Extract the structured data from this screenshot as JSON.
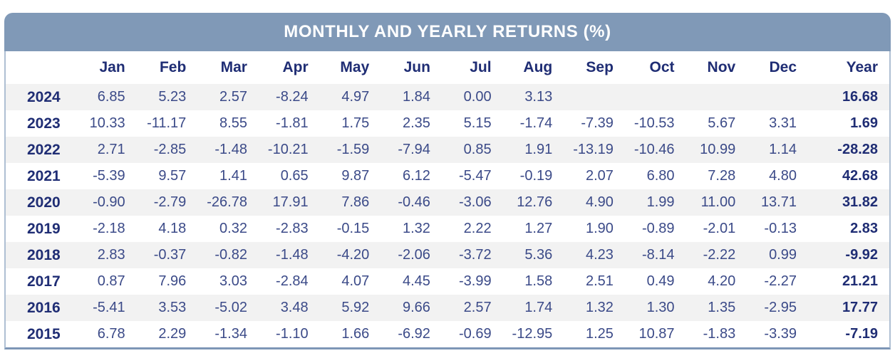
{
  "header": {
    "title": "MONTHLY AND YEARLY RETURNS (%)"
  },
  "colors": {
    "banner_bg": "#8099b7",
    "border_light": "#aebfd3",
    "border_bottom": "#7d96b6",
    "stripe_bg": "#f2f2f2",
    "head_text": "#1f2d74",
    "value_text": "#3b4a88"
  },
  "chart_data": {
    "type": "table",
    "title": "MONTHLY AND YEARLY RETURNS (%)",
    "columns": [
      "",
      "Jan",
      "Feb",
      "Mar",
      "Apr",
      "May",
      "Jun",
      "Jul",
      "Aug",
      "Sep",
      "Oct",
      "Nov",
      "Dec",
      "Year"
    ],
    "rows": [
      {
        "year": "2024",
        "values": [
          "6.85",
          "5.23",
          "2.57",
          "-8.24",
          "4.97",
          "1.84",
          "0.00",
          "3.13",
          "",
          "",
          "",
          ""
        ],
        "year_total": "16.68"
      },
      {
        "year": "2023",
        "values": [
          "10.33",
          "-11.17",
          "8.55",
          "-1.81",
          "1.75",
          "2.35",
          "5.15",
          "-1.74",
          "-7.39",
          "-10.53",
          "5.67",
          "3.31"
        ],
        "year_total": "1.69"
      },
      {
        "year": "2022",
        "values": [
          "2.71",
          "-2.85",
          "-1.48",
          "-10.21",
          "-1.59",
          "-7.94",
          "0.85",
          "1.91",
          "-13.19",
          "-10.46",
          "10.99",
          "1.14"
        ],
        "year_total": "-28.28"
      },
      {
        "year": "2021",
        "values": [
          "-5.39",
          "9.57",
          "1.41",
          "0.65",
          "9.87",
          "6.12",
          "-5.47",
          "-0.19",
          "2.07",
          "6.80",
          "7.28",
          "4.80"
        ],
        "year_total": "42.68"
      },
      {
        "year": "2020",
        "values": [
          "-0.90",
          "-2.79",
          "-26.78",
          "17.91",
          "7.86",
          "-0.46",
          "-3.06",
          "12.76",
          "4.90",
          "1.99",
          "11.00",
          "13.71"
        ],
        "year_total": "31.82"
      },
      {
        "year": "2019",
        "values": [
          "-2.18",
          "4.18",
          "0.32",
          "-2.83",
          "-0.15",
          "1.32",
          "2.22",
          "1.27",
          "1.90",
          "-0.89",
          "-2.01",
          "-0.13"
        ],
        "year_total": "2.83"
      },
      {
        "year": "2018",
        "values": [
          "2.83",
          "-0.37",
          "-0.82",
          "-1.48",
          "-4.20",
          "-2.06",
          "-3.72",
          "5.36",
          "4.23",
          "-8.14",
          "-2.22",
          "0.99"
        ],
        "year_total": "-9.92"
      },
      {
        "year": "2017",
        "values": [
          "0.87",
          "7.96",
          "3.03",
          "-2.84",
          "4.07",
          "4.45",
          "-3.99",
          "1.58",
          "2.51",
          "0.49",
          "4.20",
          "-2.27"
        ],
        "year_total": "21.21"
      },
      {
        "year": "2016",
        "values": [
          "-5.41",
          "3.53",
          "-5.02",
          "3.48",
          "5.92",
          "9.66",
          "2.57",
          "1.74",
          "1.32",
          "1.30",
          "1.35",
          "-2.95"
        ],
        "year_total": "17.77"
      },
      {
        "year": "2015",
        "values": [
          "6.78",
          "2.29",
          "-1.34",
          "-1.10",
          "1.66",
          "-6.92",
          "-0.69",
          "-12.95",
          "1.25",
          "10.87",
          "-1.83",
          "-3.39"
        ],
        "year_total": "-7.19"
      }
    ]
  }
}
